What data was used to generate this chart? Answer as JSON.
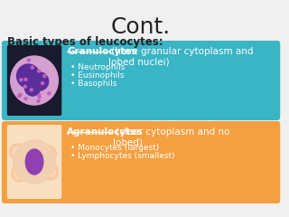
{
  "title": "Cont.",
  "subtitle": "Basic types of leucocytes:",
  "bg_color": "#f0f0f0",
  "box1_color": "#3ab5c6",
  "box2_color": "#f5a040",
  "box1_heading_underline": "Granulocytes",
  "box1_heading_rest": " (have granular cytoplasm and\nlobed nuclei)",
  "box1_bullets": [
    "Neutrophils",
    "Eusinophils",
    "Basophils"
  ],
  "box2_heading_underline": "Agranulocytes",
  "box2_heading_rest": " (clear cytoplasm and no\nlobed)",
  "box2_bullets": [
    "Monocytes (largest)",
    "Lymphocytes (smallest)"
  ],
  "text_color_white": "#ffffff",
  "text_color_dark": "#222222",
  "title_fontsize": 18,
  "subtitle_fontsize": 8.5,
  "heading_fontsize": 7.5,
  "bullet_fontsize": 6.5
}
